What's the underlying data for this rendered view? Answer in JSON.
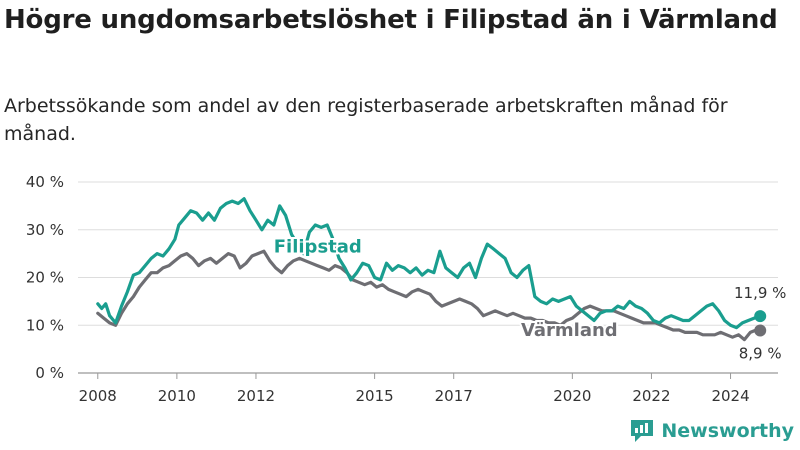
{
  "title": "Högre ungdomsarbetslöshet i Filipstad än i Värmland",
  "subtitle": "Arbetssökande som andel av den registerbaserade arbetskraften månad för månad.",
  "brand": "Newsworthy",
  "colors": {
    "filipstad": "#1a9e8f",
    "varmland": "#6e6e73",
    "grid": "#dddddd",
    "brand": "#2a9d92"
  },
  "chart_data": {
    "type": "line",
    "title": "Högre ungdomsarbetslöshet i Filipstad än i Värmland",
    "subtitle": "Arbetssökande som andel av den registerbaserade arbetskraften månad för månad.",
    "xlabel": "",
    "ylabel": "",
    "x_ticks": [
      2008,
      2010,
      2012,
      2015,
      2017,
      2020,
      2022,
      2024
    ],
    "y_ticks": [
      0,
      10,
      20,
      30,
      40
    ],
    "y_tick_labels": [
      "0 %",
      "10 %",
      "20 %",
      "30 %",
      "40 %"
    ],
    "xlim": [
      2007.5,
      2025.2
    ],
    "ylim": [
      0,
      40
    ],
    "grid": true,
    "legend": "inline labels",
    "series": [
      {
        "name": "Filipstad",
        "color": "#1a9e8f",
        "end_label": "11,9 %",
        "points": [
          [
            2008.0,
            14.5
          ],
          [
            2008.1,
            13.5
          ],
          [
            2008.2,
            14.5
          ],
          [
            2008.3,
            12
          ],
          [
            2008.45,
            10.5
          ],
          [
            2008.6,
            14
          ],
          [
            2008.75,
            17
          ],
          [
            2008.9,
            20.5
          ],
          [
            2009.05,
            21
          ],
          [
            2009.2,
            22.5
          ],
          [
            2009.35,
            24
          ],
          [
            2009.5,
            25
          ],
          [
            2009.65,
            24.5
          ],
          [
            2009.8,
            26
          ],
          [
            2009.95,
            28
          ],
          [
            2010.05,
            31
          ],
          [
            2010.2,
            32.5
          ],
          [
            2010.35,
            34
          ],
          [
            2010.5,
            33.5
          ],
          [
            2010.65,
            32
          ],
          [
            2010.8,
            33.5
          ],
          [
            2010.95,
            32
          ],
          [
            2011.1,
            34.5
          ],
          [
            2011.25,
            35.5
          ],
          [
            2011.4,
            36
          ],
          [
            2011.55,
            35.5
          ],
          [
            2011.7,
            36.5
          ],
          [
            2011.85,
            34
          ],
          [
            2012.0,
            32
          ],
          [
            2012.15,
            30
          ],
          [
            2012.3,
            32
          ],
          [
            2012.45,
            31
          ],
          [
            2012.6,
            35
          ],
          [
            2012.75,
            33
          ],
          [
            2012.9,
            29
          ],
          [
            2013.05,
            27
          ],
          [
            2013.2,
            25
          ],
          [
            2013.35,
            29.5
          ],
          [
            2013.5,
            31
          ],
          [
            2013.65,
            30.5
          ],
          [
            2013.8,
            31
          ],
          [
            2013.95,
            28
          ],
          [
            2014.1,
            24
          ],
          [
            2014.25,
            22
          ],
          [
            2014.4,
            19.5
          ],
          [
            2014.55,
            21
          ],
          [
            2014.7,
            23
          ],
          [
            2014.85,
            22.5
          ],
          [
            2015.0,
            20
          ],
          [
            2015.15,
            19.5
          ],
          [
            2015.3,
            23
          ],
          [
            2015.45,
            21.5
          ],
          [
            2015.6,
            22.5
          ],
          [
            2015.75,
            22
          ],
          [
            2015.9,
            21
          ],
          [
            2016.05,
            22
          ],
          [
            2016.2,
            20.5
          ],
          [
            2016.35,
            21.5
          ],
          [
            2016.5,
            21
          ],
          [
            2016.65,
            25.5
          ],
          [
            2016.8,
            22
          ],
          [
            2016.95,
            21
          ],
          [
            2017.1,
            20
          ],
          [
            2017.25,
            22
          ],
          [
            2017.4,
            23
          ],
          [
            2017.55,
            20
          ],
          [
            2017.7,
            24
          ],
          [
            2017.85,
            27
          ],
          [
            2018.0,
            26
          ],
          [
            2018.15,
            25
          ],
          [
            2018.3,
            24
          ],
          [
            2018.45,
            21
          ],
          [
            2018.6,
            20
          ],
          [
            2018.75,
            21.5
          ],
          [
            2018.9,
            22.5
          ],
          [
            2019.05,
            16
          ],
          [
            2019.2,
            15
          ],
          [
            2019.35,
            14.5
          ],
          [
            2019.5,
            15.5
          ],
          [
            2019.65,
            15
          ],
          [
            2019.8,
            15.5
          ],
          [
            2019.95,
            16
          ],
          [
            2020.1,
            14
          ],
          [
            2020.25,
            13
          ],
          [
            2020.4,
            12
          ],
          [
            2020.55,
            11
          ],
          [
            2020.7,
            12.5
          ],
          [
            2020.85,
            13
          ],
          [
            2021.0,
            13
          ],
          [
            2021.15,
            14
          ],
          [
            2021.3,
            13.5
          ],
          [
            2021.45,
            15
          ],
          [
            2021.6,
            14
          ],
          [
            2021.75,
            13.5
          ],
          [
            2021.9,
            12.5
          ],
          [
            2022.05,
            11
          ],
          [
            2022.2,
            10.5
          ],
          [
            2022.35,
            11.5
          ],
          [
            2022.5,
            12
          ],
          [
            2022.65,
            11.5
          ],
          [
            2022.8,
            11
          ],
          [
            2022.95,
            11
          ],
          [
            2023.1,
            12
          ],
          [
            2023.25,
            13
          ],
          [
            2023.4,
            14
          ],
          [
            2023.55,
            14.5
          ],
          [
            2023.7,
            13
          ],
          [
            2023.85,
            11
          ],
          [
            2024.0,
            10
          ],
          [
            2024.15,
            9.5
          ],
          [
            2024.3,
            10.5
          ],
          [
            2024.45,
            11
          ],
          [
            2024.6,
            11.5
          ],
          [
            2024.75,
            11.9
          ]
        ]
      },
      {
        "name": "Värmland",
        "color": "#6e6e73",
        "end_label": "8,9 %",
        "points": [
          [
            2008.0,
            12.5
          ],
          [
            2008.15,
            11.5
          ],
          [
            2008.3,
            10.5
          ],
          [
            2008.45,
            10
          ],
          [
            2008.6,
            12.5
          ],
          [
            2008.75,
            14.5
          ],
          [
            2008.9,
            16
          ],
          [
            2009.05,
            18
          ],
          [
            2009.2,
            19.5
          ],
          [
            2009.35,
            21
          ],
          [
            2009.5,
            21
          ],
          [
            2009.65,
            22
          ],
          [
            2009.8,
            22.5
          ],
          [
            2009.95,
            23.5
          ],
          [
            2010.1,
            24.5
          ],
          [
            2010.25,
            25
          ],
          [
            2010.4,
            24
          ],
          [
            2010.55,
            22.5
          ],
          [
            2010.7,
            23.5
          ],
          [
            2010.85,
            24
          ],
          [
            2011.0,
            23
          ],
          [
            2011.15,
            24
          ],
          [
            2011.3,
            25
          ],
          [
            2011.45,
            24.5
          ],
          [
            2011.6,
            22
          ],
          [
            2011.75,
            23
          ],
          [
            2011.9,
            24.5
          ],
          [
            2012.05,
            25
          ],
          [
            2012.2,
            25.5
          ],
          [
            2012.35,
            23.5
          ],
          [
            2012.5,
            22
          ],
          [
            2012.65,
            21
          ],
          [
            2012.8,
            22.5
          ],
          [
            2012.95,
            23.5
          ],
          [
            2013.1,
            24
          ],
          [
            2013.25,
            23.5
          ],
          [
            2013.4,
            23
          ],
          [
            2013.55,
            22.5
          ],
          [
            2013.7,
            22
          ],
          [
            2013.85,
            21.5
          ],
          [
            2014.0,
            22.5
          ],
          [
            2014.15,
            22
          ],
          [
            2014.3,
            21
          ],
          [
            2014.45,
            19.5
          ],
          [
            2014.6,
            19
          ],
          [
            2014.75,
            18.5
          ],
          [
            2014.9,
            19
          ],
          [
            2015.05,
            18
          ],
          [
            2015.2,
            18.5
          ],
          [
            2015.35,
            17.5
          ],
          [
            2015.5,
            17
          ],
          [
            2015.65,
            16.5
          ],
          [
            2015.8,
            16
          ],
          [
            2015.95,
            17
          ],
          [
            2016.1,
            17.5
          ],
          [
            2016.25,
            17
          ],
          [
            2016.4,
            16.5
          ],
          [
            2016.55,
            15
          ],
          [
            2016.7,
            14
          ],
          [
            2016.85,
            14.5
          ],
          [
            2017.0,
            15
          ],
          [
            2017.15,
            15.5
          ],
          [
            2017.3,
            15
          ],
          [
            2017.45,
            14.5
          ],
          [
            2017.6,
            13.5
          ],
          [
            2017.75,
            12
          ],
          [
            2017.9,
            12.5
          ],
          [
            2018.05,
            13
          ],
          [
            2018.2,
            12.5
          ],
          [
            2018.35,
            12
          ],
          [
            2018.5,
            12.5
          ],
          [
            2018.65,
            12
          ],
          [
            2018.8,
            11.5
          ],
          [
            2018.95,
            11.5
          ],
          [
            2019.1,
            11
          ],
          [
            2019.25,
            11
          ],
          [
            2019.4,
            10.5
          ],
          [
            2019.55,
            10.5
          ],
          [
            2019.7,
            10
          ],
          [
            2019.85,
            11
          ],
          [
            2020.0,
            11.5
          ],
          [
            2020.15,
            12.5
          ],
          [
            2020.3,
            13.5
          ],
          [
            2020.45,
            14
          ],
          [
            2020.6,
            13.5
          ],
          [
            2020.75,
            13
          ],
          [
            2020.9,
            13
          ],
          [
            2021.05,
            13
          ],
          [
            2021.2,
            12.5
          ],
          [
            2021.35,
            12
          ],
          [
            2021.5,
            11.5
          ],
          [
            2021.65,
            11
          ],
          [
            2021.8,
            10.5
          ],
          [
            2021.95,
            10.5
          ],
          [
            2022.1,
            10.5
          ],
          [
            2022.25,
            10
          ],
          [
            2022.4,
            9.5
          ],
          [
            2022.55,
            9
          ],
          [
            2022.7,
            9
          ],
          [
            2022.85,
            8.5
          ],
          [
            2023.0,
            8.5
          ],
          [
            2023.15,
            8.5
          ],
          [
            2023.3,
            8
          ],
          [
            2023.45,
            8
          ],
          [
            2023.6,
            8
          ],
          [
            2023.75,
            8.5
          ],
          [
            2023.9,
            8
          ],
          [
            2024.05,
            7.5
          ],
          [
            2024.2,
            8
          ],
          [
            2024.35,
            7
          ],
          [
            2024.5,
            8.5
          ],
          [
            2024.65,
            9
          ],
          [
            2024.75,
            8.9
          ]
        ]
      }
    ]
  }
}
